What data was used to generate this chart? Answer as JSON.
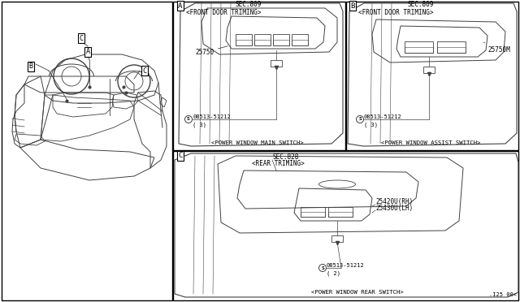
{
  "bg_color": "#ffffff",
  "border_color": "#000000",
  "line_color": "#404040",
  "text_color": "#000000",
  "fig_width": 6.4,
  "fig_height": 3.72,
  "part_number_bottom_right": ".I25 00<",
  "panels": {
    "A": {
      "label": "A",
      "title_line1": "SEC.809",
      "title_line2": "<FRONT DOOR TRIMING>",
      "caption": "<POWER WINDOW MAIN SWITCH>",
      "part": "25750",
      "screw_label": "08513-51212",
      "screw_qty": "( 3)"
    },
    "B": {
      "label": "B",
      "title_line1": "SEC.809",
      "title_line2": "<FRONT DOOR TRIMING>",
      "caption": "<POWER WINDOW ASSIST SWITCH>",
      "part": "25750M",
      "screw_label": "08513-51212",
      "screw_qty": "( 3)"
    },
    "C": {
      "label": "C",
      "title_line1": "SEC.828",
      "title_line2": "<REAR TRIMING>",
      "caption": "<POWER WINDOW REAR SWITCH>",
      "part1": "25420U(RH)",
      "part2": "25430U(LH)",
      "screw_label": "08513-51212",
      "screw_qty": "( 2)"
    }
  }
}
